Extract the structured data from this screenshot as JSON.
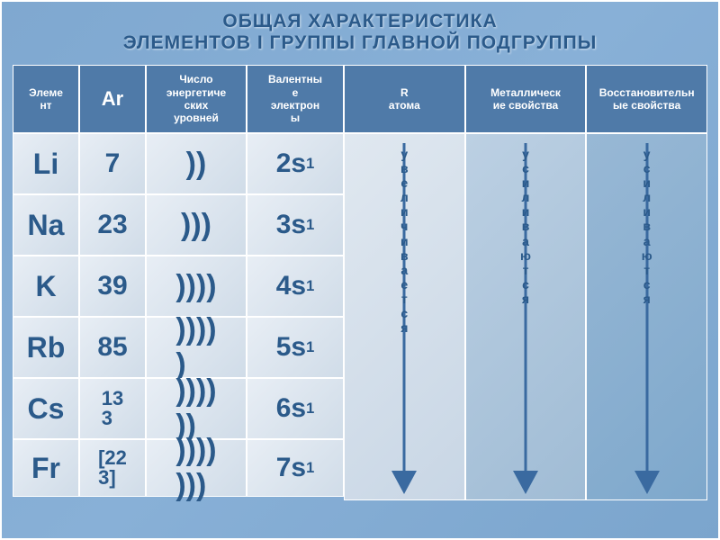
{
  "title": {
    "line1": "ОБЩАЯ ХАРАКТЕРИСТИКА",
    "line2": "ЭЛЕМЕНТОВ I ГРУППЫ ГЛАВНОЙ ПОДГРУППЫ"
  },
  "headers": {
    "element": "Элеме\nнт",
    "ar": "Ar",
    "levels": "Число\nэнергетиче\nских\nуровней",
    "valence": "Валентны\nе\nэлектрон\nы",
    "radius": "R\nатома",
    "metallic": "Металлическ\nие свойства",
    "reducing": "Восстановительн\nые свойства"
  },
  "elements": [
    "Li",
    "Na",
    "K",
    "Rb",
    "Cs",
    "Fr"
  ],
  "ar_values": [
    "7",
    "23",
    "39",
    "85",
    "13\n3",
    "[22\n3]"
  ],
  "levels": [
    "))",
    ")))",
    "))))",
    "))))\n)",
    "))))\n))",
    "))))\n)))"
  ],
  "valence": [
    "2s¹",
    "3s¹",
    "4s¹",
    "5s¹",
    "6s¹",
    "7s¹"
  ],
  "arrows": {
    "radius": "увеличивается",
    "metallic": "усиливаются",
    "reducing": "усиливаются"
  },
  "colors": {
    "arrow_stroke": "#3a6aa0",
    "arrow_fill": "#3a6aa0"
  }
}
